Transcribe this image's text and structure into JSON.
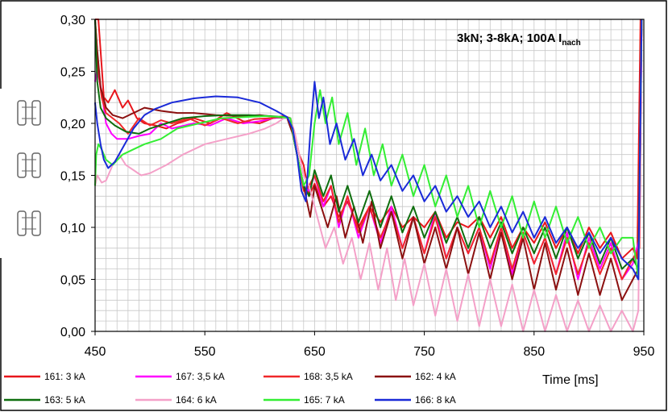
{
  "chart_data": {
    "type": "line",
    "title": "",
    "xlabel": "Time [ms]",
    "ylabel": "",
    "xlim": [
      450,
      950
    ],
    "ylim": [
      0.0,
      0.3
    ],
    "x_ticks": [
      "450",
      "550",
      "650",
      "750",
      "850",
      "950"
    ],
    "y_ticks": [
      "0,00",
      "0,05",
      "0,10",
      "0,15",
      "0,20",
      "0,25",
      "0,30"
    ],
    "grid": true,
    "legend_position": "bottom",
    "annotation": {
      "main": "3kN; 3-8kA; 100A I",
      "subscript": "nach"
    },
    "series": [
      {
        "name": "161: 3 kA",
        "color": "#e8161c",
        "x": [
          450,
          453,
          458,
          462,
          468,
          475,
          480,
          488,
          495,
          505,
          515,
          525,
          540,
          555,
          570,
          585,
          600,
          612,
          622,
          628,
          632,
          636,
          640,
          645,
          650,
          658,
          665,
          672,
          680,
          690,
          700,
          710,
          720,
          730,
          740,
          750,
          760,
          770,
          780,
          790,
          800,
          810,
          820,
          830,
          840,
          850,
          860,
          870,
          880,
          890,
          900,
          910,
          920,
          930,
          940,
          944,
          947
        ],
        "y": [
          0.3,
          0.3,
          0.225,
          0.22,
          0.232,
          0.215,
          0.222,
          0.205,
          0.2,
          0.198,
          0.195,
          0.2,
          0.205,
          0.2,
          0.21,
          0.202,
          0.2,
          0.205,
          0.207,
          0.205,
          0.19,
          0.17,
          0.16,
          0.13,
          0.142,
          0.12,
          0.13,
          0.11,
          0.125,
          0.1,
          0.12,
          0.105,
          0.12,
          0.1,
          0.11,
          0.1,
          0.115,
          0.09,
          0.105,
          0.1,
          0.11,
          0.09,
          0.11,
          0.08,
          0.1,
          0.085,
          0.105,
          0.08,
          0.1,
          0.075,
          0.1,
          0.08,
          0.095,
          0.07,
          0.08,
          0.07,
          0.3
        ]
      },
      {
        "name": "167: 3,5 kA",
        "color": "#ff00ff",
        "x": [
          450,
          452,
          456,
          460,
          465,
          470,
          480,
          490,
          500,
          510,
          520,
          540,
          555,
          570,
          585,
          600,
          612,
          622,
          628,
          632,
          636,
          640,
          645,
          650,
          658,
          665,
          672,
          680,
          690,
          700,
          710,
          720,
          730,
          740,
          750,
          760,
          770,
          780,
          790,
          800,
          810,
          820,
          830,
          840,
          850,
          860,
          870,
          880,
          890,
          900,
          910,
          920,
          930,
          940,
          946,
          948
        ],
        "y": [
          0.24,
          0.252,
          0.23,
          0.2,
          0.19,
          0.185,
          0.185,
          0.188,
          0.19,
          0.2,
          0.195,
          0.2,
          0.198,
          0.205,
          0.2,
          0.202,
          0.205,
          0.206,
          0.205,
          0.18,
          0.16,
          0.14,
          0.135,
          0.15,
          0.12,
          0.14,
          0.1,
          0.13,
          0.09,
          0.12,
          0.085,
          0.12,
          0.08,
          0.11,
          0.075,
          0.115,
          0.07,
          0.1,
          0.075,
          0.1,
          0.06,
          0.1,
          0.055,
          0.095,
          0.065,
          0.09,
          0.055,
          0.095,
          0.05,
          0.09,
          0.06,
          0.085,
          0.05,
          0.065,
          0.09,
          0.3
        ]
      },
      {
        "name": "168: 3,5 kA",
        "color": "#f0282a",
        "x": [
          450,
          453,
          456,
          460,
          466,
          472,
          480,
          490,
          500,
          510,
          520,
          535,
          550,
          565,
          580,
          595,
          610,
          622,
          628,
          632,
          636,
          640,
          645,
          650,
          658,
          665,
          672,
          680,
          690,
          700,
          710,
          720,
          730,
          740,
          750,
          760,
          770,
          780,
          790,
          800,
          810,
          820,
          830,
          840,
          850,
          860,
          870,
          880,
          890,
          900,
          910,
          920,
          930,
          940,
          946,
          948
        ],
        "y": [
          0.3,
          0.25,
          0.225,
          0.21,
          0.205,
          0.2,
          0.19,
          0.205,
          0.198,
          0.203,
          0.2,
          0.205,
          0.198,
          0.205,
          0.2,
          0.204,
          0.205,
          0.207,
          0.205,
          0.18,
          0.16,
          0.135,
          0.14,
          0.15,
          0.125,
          0.14,
          0.105,
          0.13,
          0.095,
          0.12,
          0.09,
          0.115,
          0.08,
          0.11,
          0.075,
          0.11,
          0.07,
          0.1,
          0.075,
          0.1,
          0.065,
          0.1,
          0.06,
          0.095,
          0.065,
          0.09,
          0.055,
          0.09,
          0.055,
          0.085,
          0.055,
          0.08,
          0.05,
          0.07,
          0.08,
          0.3
        ]
      },
      {
        "name": "162: 4 kA",
        "color": "#8b1010",
        "x": [
          450,
          452,
          455,
          460,
          466,
          475,
          485,
          495,
          510,
          525,
          540,
          560,
          580,
          600,
          615,
          625,
          630,
          634,
          638,
          642,
          646,
          650,
          656,
          662,
          670,
          678,
          686,
          694,
          702,
          710,
          720,
          730,
          740,
          750,
          760,
          770,
          780,
          790,
          800,
          810,
          820,
          830,
          840,
          850,
          860,
          870,
          880,
          890,
          900,
          910,
          920,
          930,
          940,
          945,
          948
        ],
        "y": [
          0.3,
          0.27,
          0.235,
          0.215,
          0.208,
          0.205,
          0.21,
          0.215,
          0.212,
          0.21,
          0.21,
          0.208,
          0.207,
          0.208,
          0.206,
          0.205,
          0.19,
          0.17,
          0.15,
          0.13,
          0.11,
          0.14,
          0.12,
          0.1,
          0.13,
          0.09,
          0.12,
          0.085,
          0.125,
          0.08,
          0.115,
          0.07,
          0.11,
          0.065,
          0.1,
          0.06,
          0.1,
          0.055,
          0.095,
          0.05,
          0.095,
          0.05,
          0.09,
          0.04,
          0.085,
          0.04,
          0.08,
          0.035,
          0.075,
          0.035,
          0.07,
          0.03,
          0.05,
          0.06,
          0.3
        ]
      },
      {
        "name": "163: 5 kA",
        "color": "#0e6e0e",
        "x": [
          450,
          452,
          455,
          460,
          468,
          478,
          490,
          500,
          515,
          530,
          550,
          570,
          590,
          610,
          622,
          628,
          632,
          636,
          640,
          645,
          650,
          658,
          665,
          672,
          680,
          690,
          700,
          710,
          720,
          730,
          740,
          750,
          760,
          770,
          780,
          790,
          800,
          810,
          820,
          830,
          840,
          850,
          860,
          870,
          880,
          890,
          900,
          910,
          920,
          930,
          940,
          945,
          948
        ],
        "y": [
          0.3,
          0.24,
          0.215,
          0.205,
          0.198,
          0.192,
          0.19,
          0.195,
          0.2,
          0.205,
          0.207,
          0.208,
          0.208,
          0.207,
          0.206,
          0.205,
          0.18,
          0.16,
          0.14,
          0.13,
          0.155,
          0.13,
          0.15,
          0.115,
          0.14,
          0.105,
          0.135,
          0.1,
          0.13,
          0.095,
          0.12,
          0.09,
          0.115,
          0.085,
          0.11,
          0.08,
          0.11,
          0.08,
          0.105,
          0.075,
          0.1,
          0.075,
          0.1,
          0.07,
          0.1,
          0.07,
          0.095,
          0.065,
          0.09,
          0.06,
          0.07,
          0.06,
          0.3
        ]
      },
      {
        "name": "164: 6 kA",
        "color": "#f4a0c8",
        "x": [
          450,
          452,
          456,
          460,
          466,
          472,
          478,
          485,
          492,
          500,
          515,
          530,
          550,
          570,
          590,
          605,
          615,
          622,
          628,
          632,
          636,
          640,
          645,
          650,
          655,
          660,
          668,
          676,
          684,
          692,
          700,
          708,
          716,
          724,
          732,
          740,
          750,
          760,
          770,
          780,
          790,
          800,
          810,
          820,
          830,
          840,
          850,
          860,
          870,
          880,
          890,
          900,
          910,
          920,
          930,
          940,
          945,
          948
        ],
        "y": [
          0.14,
          0.15,
          0.143,
          0.145,
          0.16,
          0.17,
          0.16,
          0.155,
          0.15,
          0.152,
          0.16,
          0.17,
          0.18,
          0.185,
          0.19,
          0.195,
          0.2,
          0.205,
          0.205,
          0.19,
          0.17,
          0.15,
          0.14,
          0.12,
          0.1,
          0.08,
          0.1,
          0.065,
          0.09,
          0.05,
          0.085,
          0.04,
          0.08,
          0.03,
          0.07,
          0.025,
          0.065,
          0.015,
          0.06,
          0.01,
          0.055,
          0.005,
          0.05,
          0.005,
          0.045,
          0.0,
          0.04,
          0.0,
          0.035,
          0.0,
          0.03,
          0.0,
          0.025,
          0.0,
          0.02,
          0.0,
          0.02,
          0.3
        ]
      },
      {
        "name": "165: 7 kA",
        "color": "#33ee33",
        "x": [
          450,
          451,
          453,
          456,
          460,
          466,
          475,
          485,
          495,
          510,
          525,
          545,
          565,
          585,
          605,
          620,
          628,
          632,
          636,
          640,
          645,
          650,
          655,
          660,
          666,
          672,
          680,
          688,
          696,
          704,
          712,
          720,
          730,
          740,
          750,
          760,
          770,
          780,
          790,
          800,
          810,
          820,
          830,
          840,
          850,
          860,
          870,
          880,
          890,
          900,
          910,
          920,
          930,
          940,
          945,
          948
        ],
        "y": [
          0.14,
          0.17,
          0.18,
          0.175,
          0.165,
          0.16,
          0.17,
          0.175,
          0.18,
          0.185,
          0.195,
          0.2,
          0.205,
          0.206,
          0.207,
          0.206,
          0.205,
          0.18,
          0.16,
          0.14,
          0.15,
          0.2,
          0.232,
          0.2,
          0.225,
          0.18,
          0.21,
          0.16,
          0.195,
          0.15,
          0.18,
          0.14,
          0.17,
          0.13,
          0.16,
          0.12,
          0.15,
          0.11,
          0.14,
          0.1,
          0.135,
          0.1,
          0.13,
          0.09,
          0.125,
          0.09,
          0.12,
          0.085,
          0.11,
          0.08,
          0.1,
          0.075,
          0.09,
          0.09,
          0.05,
          0.3
        ]
      },
      {
        "name": "166: 8 kA",
        "color": "#1a2ad8",
        "x": [
          450,
          452,
          455,
          458,
          462,
          468,
          476,
          485,
          495,
          505,
          520,
          540,
          560,
          580,
          600,
          615,
          625,
          630,
          634,
          638,
          642,
          646,
          650,
          654,
          658,
          664,
          670,
          678,
          686,
          694,
          702,
          710,
          720,
          730,
          740,
          750,
          760,
          770,
          780,
          790,
          800,
          810,
          820,
          830,
          840,
          850,
          860,
          870,
          880,
          890,
          900,
          910,
          920,
          930,
          940,
          945,
          948
        ],
        "y": [
          0.22,
          0.2,
          0.18,
          0.165,
          0.157,
          0.163,
          0.178,
          0.195,
          0.208,
          0.214,
          0.22,
          0.224,
          0.226,
          0.225,
          0.22,
          0.212,
          0.206,
          0.195,
          0.17,
          0.135,
          0.125,
          0.19,
          0.24,
          0.205,
          0.225,
          0.18,
          0.2,
          0.165,
          0.185,
          0.15,
          0.17,
          0.145,
          0.16,
          0.135,
          0.15,
          0.125,
          0.14,
          0.115,
          0.13,
          0.11,
          0.125,
          0.1,
          0.12,
          0.095,
          0.115,
          0.09,
          0.11,
          0.085,
          0.1,
          0.08,
          0.095,
          0.075,
          0.09,
          0.07,
          0.06,
          0.05,
          0.3
        ]
      }
    ]
  }
}
